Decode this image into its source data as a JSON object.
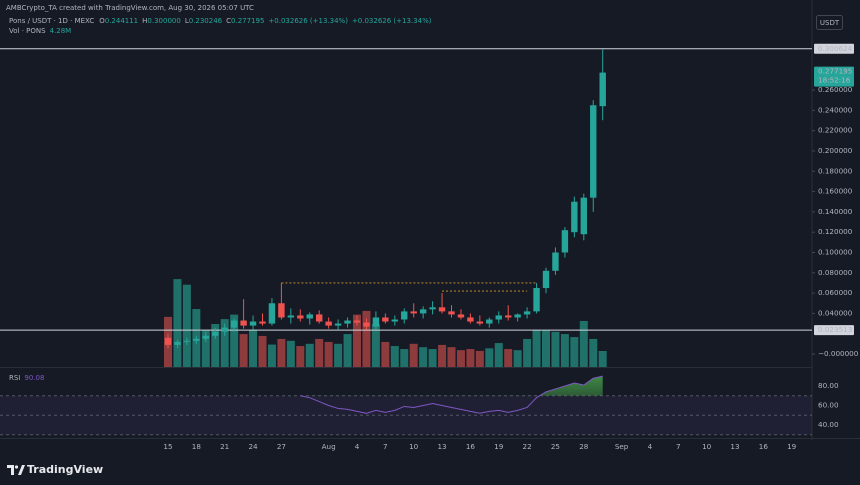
{
  "header": {
    "attribution": "AMBCrypto_TA created with TradingView.com, Aug 30, 2026 05:07 UTC",
    "brand": "TradingView"
  },
  "chart_data": {
    "type": "candlestick",
    "symbol": "Pons / USDT · 1D · MEXC",
    "legend": [
      {
        "key": "O",
        "label": "0.244111"
      },
      {
        "key": "H",
        "label": "0.300000"
      },
      {
        "key": "L",
        "label": "0.230246"
      },
      {
        "key": "C",
        "label": "0.277195"
      }
    ],
    "change": "+0.032626 (+13.34%)",
    "currency": "USDT",
    "countdown": "18:52:16",
    "categories": [
      "15",
      null,
      null,
      "18",
      null,
      null,
      "21",
      null,
      null,
      "24",
      null,
      null,
      "27",
      null,
      null,
      null,
      null,
      "Aug",
      null,
      null,
      "4",
      null,
      null,
      "7",
      null,
      null,
      "10",
      null,
      null,
      "13",
      null,
      null,
      "16",
      null,
      null,
      "19",
      null,
      null,
      "22",
      null,
      null,
      "25",
      null,
      null,
      "28",
      null,
      null,
      null,
      "Sep",
      null,
      null,
      "4",
      null,
      null,
      "7",
      null,
      null,
      "10",
      null,
      null,
      "13",
      null,
      null,
      "16",
      null,
      null,
      "19"
    ],
    "open": [
      0.016,
      0.009,
      0.012,
      0.013,
      0.015,
      0.018,
      0.022,
      0.026,
      0.033,
      0.028,
      0.032,
      0.03,
      0.05,
      0.036,
      0.038,
      0.035,
      0.039,
      0.032,
      0.028,
      0.03,
      0.033,
      0.031,
      0.027,
      0.036,
      0.032,
      0.034,
      0.042,
      0.04,
      0.044,
      0.046,
      0.042,
      0.039,
      0.036,
      0.032,
      0.03,
      0.034,
      0.038,
      0.036,
      0.039,
      0.042,
      0.065,
      0.082,
      0.1,
      0.12,
      0.118,
      0.154,
      0.244111,
      null,
      null,
      null,
      null,
      null,
      null,
      null,
      null,
      null,
      null,
      null,
      null,
      null,
      null,
      null,
      null,
      null,
      null,
      null,
      null
    ],
    "high": [
      0.02,
      0.014,
      0.016,
      0.018,
      0.022,
      0.026,
      0.03,
      0.035,
      0.054,
      0.038,
      0.04,
      0.055,
      0.07,
      0.045,
      0.044,
      0.041,
      0.043,
      0.036,
      0.034,
      0.036,
      0.038,
      0.035,
      0.042,
      0.04,
      0.038,
      0.045,
      0.05,
      0.047,
      0.052,
      0.06,
      0.048,
      0.044,
      0.04,
      0.038,
      0.036,
      0.042,
      0.048,
      0.04,
      0.046,
      0.07,
      0.085,
      0.105,
      0.125,
      0.155,
      0.158,
      0.25,
      0.3,
      null,
      null,
      null,
      null,
      null,
      null,
      null,
      null,
      null,
      null,
      null,
      null,
      null,
      null,
      null,
      null,
      null,
      null,
      null,
      null
    ],
    "low": [
      0.006,
      0.006,
      0.009,
      0.01,
      0.012,
      0.015,
      0.018,
      0.022,
      0.025,
      0.024,
      0.028,
      0.028,
      0.034,
      0.03,
      0.032,
      0.029,
      0.03,
      0.025,
      0.024,
      0.026,
      0.028,
      0.024,
      0.024,
      0.03,
      0.028,
      0.03,
      0.036,
      0.035,
      0.039,
      0.04,
      0.036,
      0.034,
      0.03,
      0.028,
      0.026,
      0.03,
      0.033,
      0.032,
      0.035,
      0.04,
      0.06,
      0.078,
      0.095,
      0.115,
      0.112,
      0.14,
      0.230246,
      null,
      null,
      null,
      null,
      null,
      null,
      null,
      null,
      null,
      null,
      null,
      null,
      null,
      null,
      null,
      null,
      null,
      null,
      null,
      null
    ],
    "close": [
      0.009,
      0.012,
      0.013,
      0.015,
      0.018,
      0.022,
      0.026,
      0.033,
      0.028,
      0.032,
      0.03,
      0.05,
      0.036,
      0.038,
      0.035,
      0.039,
      0.032,
      0.028,
      0.03,
      0.033,
      0.031,
      0.027,
      0.036,
      0.032,
      0.034,
      0.042,
      0.04,
      0.044,
      0.046,
      0.042,
      0.039,
      0.036,
      0.032,
      0.03,
      0.034,
      0.038,
      0.036,
      0.039,
      0.042,
      0.065,
      0.082,
      0.1,
      0.122,
      0.15,
      0.154,
      0.245,
      0.277195,
      null,
      null,
      null,
      null,
      null,
      null,
      null,
      null,
      null,
      null,
      null,
      null,
      null,
      null,
      null,
      null,
      null,
      null,
      null,
      null
    ],
    "up_color": "#26a69a",
    "down_color": "#ef5350",
    "ylim": [
      -0.0108,
      0.3073
    ],
    "yticks": [
      {
        "value": 0,
        "label": "−0.000000"
      },
      {
        "value": 0.04,
        "label": "0.040000"
      },
      {
        "value": 0.06,
        "label": "0.060000"
      },
      {
        "value": 0.08,
        "label": "0.080000"
      },
      {
        "value": 0.1,
        "label": "0.100000"
      },
      {
        "value": 0.12,
        "label": "0.120000"
      },
      {
        "value": 0.14,
        "label": "0.140000"
      },
      {
        "value": 0.16,
        "label": "0.160000"
      },
      {
        "value": 0.18,
        "label": "0.180000"
      },
      {
        "value": 0.2,
        "label": "0.200000"
      },
      {
        "value": 0.22,
        "label": "0.220000"
      },
      {
        "value": 0.24,
        "label": "0.240000"
      },
      {
        "value": 0.26,
        "label": "0.260000"
      }
    ],
    "price_lines": [
      0.300624,
      0.023513
    ],
    "price_line_color": "#d1d4dc",
    "levels": [
      0.07,
      0.062
    ],
    "level_color": "#d89b2b",
    "volume": {
      "name": "Vol · PONS",
      "label": "4.28M",
      "up_color": "#1f716a",
      "down_color": "#8e3b3d",
      "ylim": [
        0,
        27
      ],
      "values": [
        13.4,
        23.5,
        22,
        15.5,
        10,
        11.5,
        12.8,
        14,
        8.8,
        10,
        8.3,
        6,
        7.5,
        7,
        5.6,
        6.2,
        7.5,
        6.7,
        6.2,
        8.8,
        14,
        15,
        11.5,
        6.7,
        5.6,
        4.8,
        6.2,
        5.3,
        4.8,
        5.9,
        5.3,
        4.5,
        4.8,
        4.3,
        5,
        6.4,
        4.8,
        4.5,
        7.5,
        10,
        9.9,
        9.4,
        8.8,
        8,
        12.3,
        7.5,
        4.28,
        null,
        null,
        null,
        null,
        null,
        null,
        null,
        null,
        null,
        null,
        null,
        null,
        null,
        null,
        null,
        null,
        null,
        null,
        null,
        null
      ]
    },
    "rsi": {
      "name": "RSI",
      "color": "#7e57c2",
      "ylim": [
        27.7,
        96.4
      ],
      "yticks": [
        {
          "value": 40,
          "label": "40.00"
        },
        {
          "value": 60,
          "label": "60.00"
        },
        {
          "value": 80,
          "label": "80.00"
        }
      ],
      "bands": [
        70,
        50,
        30
      ],
      "values": [
        null,
        null,
        null,
        null,
        null,
        null,
        null,
        null,
        null,
        null,
        null,
        null,
        null,
        null,
        70,
        68,
        64,
        60,
        57,
        56,
        54,
        52,
        55,
        53,
        55,
        59,
        58,
        60,
        62,
        60,
        58,
        56,
        54,
        52,
        54,
        55,
        53,
        55,
        58,
        68,
        74,
        77,
        80,
        83,
        81,
        88,
        90.08,
        null,
        null,
        null,
        null,
        null,
        null,
        null,
        null,
        null,
        null,
        null,
        null,
        null,
        null,
        null,
        null,
        null,
        null,
        null,
        null
      ]
    }
  }
}
